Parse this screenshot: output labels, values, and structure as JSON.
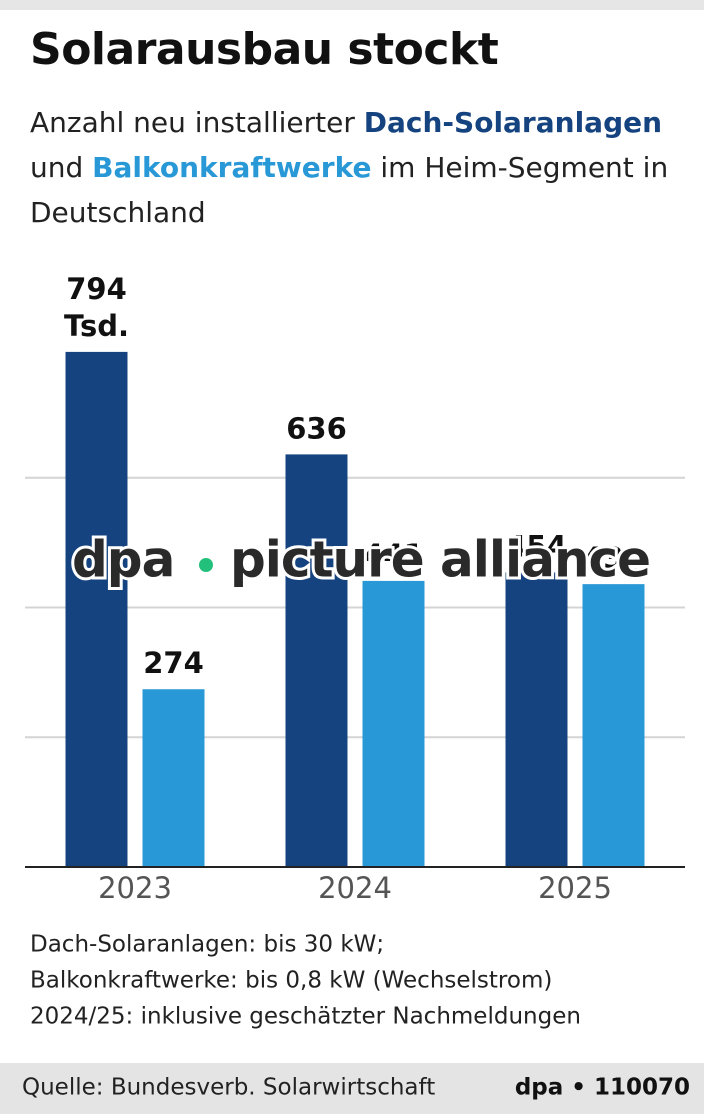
{
  "chart_data": {
    "type": "bar",
    "title": "Solarausbau stockt",
    "subtitle": [
      "Anzahl neu installierter",
      "und",
      "im Heim-Segment in Deutschland"
    ],
    "categories": [
      "2023",
      "2024",
      "2025"
    ],
    "series": [
      {
        "name": "Dach-Solaranlagen",
        "color": "#15437f",
        "values": [
          794,
          636,
          454
        ],
        "value_labels": [
          "794 Tsd.",
          "636",
          "454"
        ]
      },
      {
        "name": "Balkonkraftwerke",
        "color": "#2898d6",
        "values": [
          274,
          441,
          436
        ]
      }
    ],
    "ylim": [
      0,
      800
    ],
    "yticks": [
      0,
      200,
      400,
      600
    ],
    "grid": true,
    "notes": [
      "Dach-Solaranlagen: bis 30 kW;",
      "Balkonkraftwerke: bis 0,8 kW (Wechselstrom)",
      "2024/25: inklusive geschätzter Nachmeldungen"
    ],
    "source": "Quelle: Bundesverb. Solarwirtschaft",
    "credit": "dpa • 110070",
    "watermark": [
      "dpa",
      "picture alliance"
    ]
  }
}
